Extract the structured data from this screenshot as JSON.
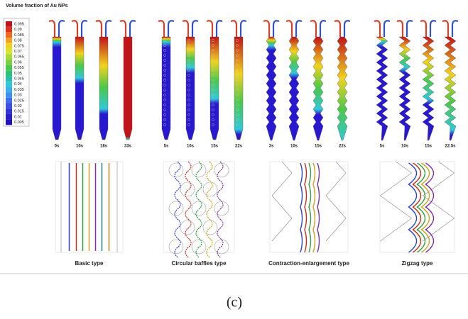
{
  "title": "Volume fraction of Au NPs",
  "legend": [
    "0.095",
    "0.09",
    "0.085",
    "0.08",
    "0.075",
    "0.07",
    "0.065",
    "0.06",
    "0.055",
    "0.05",
    "0.045",
    "0.04",
    "0.035",
    "0.03",
    "0.025",
    "0.02",
    "0.015",
    "0.01",
    "0.005"
  ],
  "groups": [
    {
      "label": "Basic type",
      "times": [
        "0s",
        "10s",
        "18s",
        "33s"
      ]
    },
    {
      "label": "Circular baffles type",
      "times": [
        "5s",
        "10s",
        "15s",
        "22s"
      ]
    },
    {
      "label": "Contraction-enlargement type",
      "times": [
        "3s",
        "10s",
        "15s",
        "22s"
      ]
    },
    {
      "label": "Zigzag type",
      "times": [
        "5s",
        "10s",
        "15s",
        "22.5s"
      ]
    }
  ],
  "caption": "(c)"
}
